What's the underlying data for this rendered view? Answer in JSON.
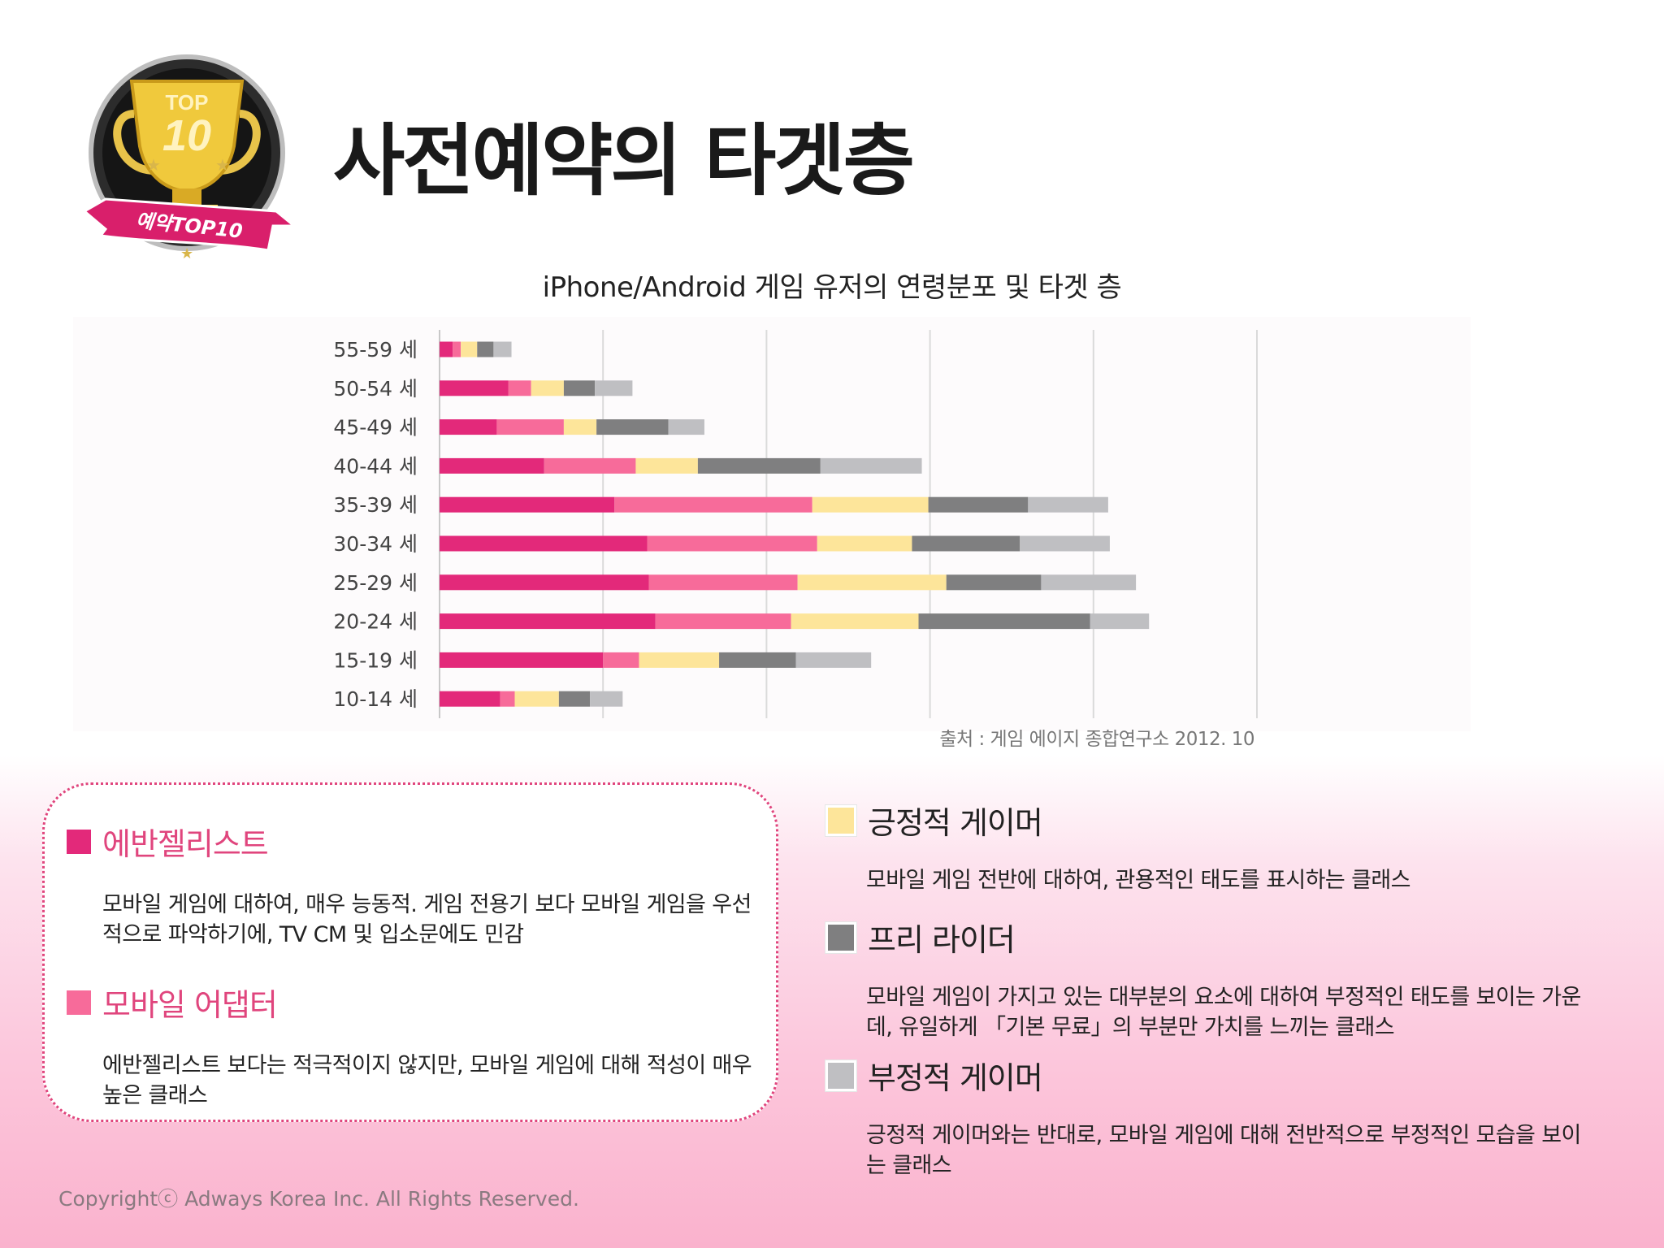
{
  "header": {
    "title": "사전예약의 타겟층",
    "logo": {
      "text_top": "TOP",
      "text_number": "10",
      "ribbon_text": "예약TOP10"
    }
  },
  "chart_data": {
    "type": "bar",
    "orientation": "horizontal",
    "stacked": true,
    "title": "iPhone/Android 게임 유저의 연령분포 및 타겟 층",
    "categories": [
      "55-59 세",
      "50-54 세",
      "45-49 세",
      "40-44 세",
      "35-39 세",
      "30-34 세",
      "25-29 세",
      "20-24 세",
      "15-19 세",
      "10-14 세"
    ],
    "series": [
      {
        "name": "에반젤리스트",
        "color": "#e3297a",
        "values": [
          0.8,
          4.2,
          3.5,
          6.4,
          10.7,
          12.7,
          12.8,
          13.2,
          10.0,
          3.7
        ]
      },
      {
        "name": "모바일 어댑터",
        "color": "#f76b9a",
        "values": [
          0.5,
          1.4,
          4.1,
          5.6,
          12.1,
          10.4,
          9.1,
          8.3,
          2.2,
          0.9
        ]
      },
      {
        "name": "긍정적 게이머",
        "color": "#fde59a",
        "values": [
          1.0,
          2.0,
          2.0,
          3.8,
          7.1,
          5.8,
          9.1,
          7.8,
          4.9,
          2.7
        ]
      },
      {
        "name": "프리 라이더",
        "color": "#7f7f80",
        "values": [
          1.0,
          1.9,
          4.4,
          7.5,
          6.1,
          6.6,
          5.8,
          10.5,
          4.7,
          1.9
        ]
      },
      {
        "name": "부정적 게이머",
        "color": "#bfbfc2",
        "values": [
          1.1,
          2.3,
          2.2,
          6.2,
          4.9,
          5.5,
          5.8,
          3.6,
          4.6,
          2.0
        ]
      }
    ],
    "xlim": [
      0,
      50
    ],
    "grid": true,
    "legend": "none",
    "source": "출처 : 게임 에이지 종합연구소 2012. 10"
  },
  "categories_info": {
    "evangelist": {
      "title": "에반젤리스트",
      "color": "#e3297a",
      "description": "모바일 게임에 대하여, 매우 능동적. 게임 전용기 보다 모바일 게임을 우선적으로 파악하기에, TV CM 및 입소문에도 민감"
    },
    "adapter": {
      "title": "모바일 어댑터",
      "color": "#f76b9a",
      "description": "에반젤리스트 보다는 적극적이지 않지만, 모바일 게임에 대해 적성이 매우 높은 클래스"
    },
    "positive": {
      "title": "긍정적 게이머",
      "color": "#fde59a",
      "description": "모바일 게임 전반에 대하여, 관용적인 태도를 표시하는 클래스"
    },
    "freerider": {
      "title": "프리 라이더",
      "color": "#7f7f80",
      "description": "모바일 게임이 가지고 있는 대부분의 요소에 대하여 부정적인 태도를 보이는 가운데, 유일하게 「기본 무료」의 부분만 가치를 느끼는 클래스"
    },
    "negative": {
      "title": "부정적 게이머",
      "color": "#bfbfc2",
      "description": "긍정적 게이머와는 반대로, 모바일 게임에 대해 전반적으로 부정적인 모습을 보이는 클래스"
    }
  },
  "footer": {
    "copyright": "Copyrightⓒ Adways Korea Inc. All Rights Reserved."
  }
}
